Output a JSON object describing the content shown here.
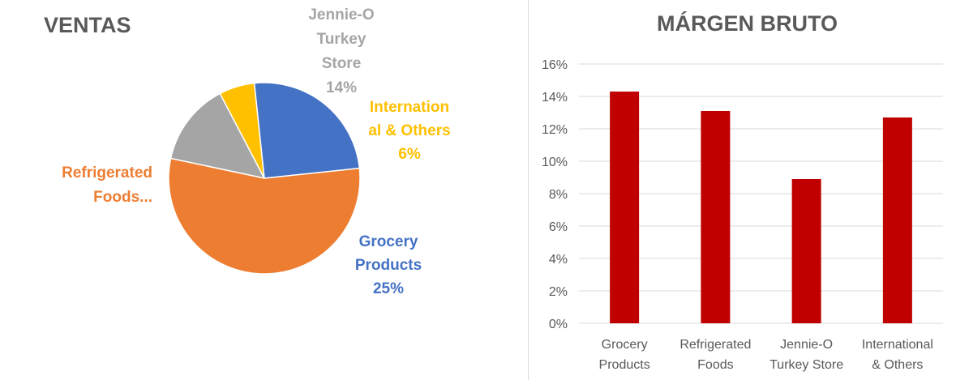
{
  "chart_data": [
    {
      "type": "pie",
      "title": "VENTAS",
      "slices": [
        {
          "label_lines": [
            "Jennie-O",
            "Turkey",
            "Store",
            "14%"
          ],
          "value": 14,
          "color": "#a5a5a5"
        },
        {
          "label_lines": [
            "Internation",
            "al & Others",
            "6%"
          ],
          "value": 6,
          "color": "#ffc000"
        },
        {
          "label_lines": [
            "Grocery",
            "Products",
            "25%"
          ],
          "value": 25,
          "color": "#4472c4"
        },
        {
          "label_lines": [
            "Refrigerated",
            "Foods..."
          ],
          "value": 55,
          "color": "#ed7d31"
        }
      ]
    },
    {
      "type": "bar",
      "title": "MÁRGEN BRUTO",
      "categories": [
        [
          "Grocery",
          "Products"
        ],
        [
          "Refrigerated",
          "Foods"
        ],
        [
          "Jennie-O",
          "Turkey Store"
        ],
        [
          "International",
          "& Others"
        ]
      ],
      "values": [
        0.143,
        0.131,
        0.089,
        0.127
      ],
      "ylim": [
        0,
        0.16
      ],
      "yticks": [
        "0%",
        "2%",
        "4%",
        "6%",
        "8%",
        "10%",
        "12%",
        "14%",
        "16%"
      ],
      "bar_color": "#c00000",
      "grid": true
    }
  ]
}
